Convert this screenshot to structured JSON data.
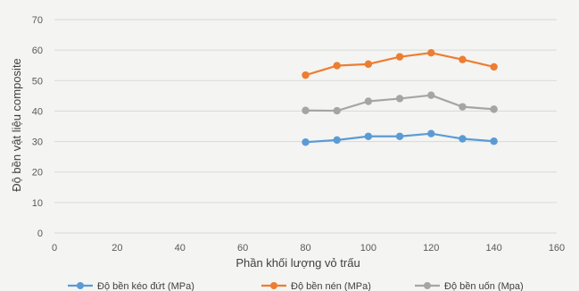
{
  "chart_data": {
    "type": "line",
    "title": "",
    "xlabel": "Phần khối lượng vỏ trấu",
    "ylabel": "Độ bền vật liệu composite",
    "xlim": [
      0,
      160
    ],
    "ylim": [
      0,
      70
    ],
    "x_ticks": [
      0,
      20,
      40,
      60,
      80,
      100,
      120,
      140,
      160
    ],
    "y_ticks": [
      0,
      10,
      20,
      30,
      40,
      50,
      60,
      70
    ],
    "grid": "horizontal",
    "legend_position": "bottom",
    "x": [
      80,
      90,
      100,
      110,
      120,
      130,
      140
    ],
    "series": [
      {
        "name": "Độ bền kéo đứt (MPa)",
        "color": "#5b9bd5",
        "values": [
          29.8,
          30.5,
          31.7,
          31.7,
          32.6,
          30.9,
          30.1
        ]
      },
      {
        "name": "Độ bền nén (MPa)",
        "color": "#ed7d31",
        "values": [
          51.8,
          54.9,
          55.4,
          57.8,
          59.1,
          56.9,
          54.5
        ]
      },
      {
        "name": "Độ bền uốn (Mpa)",
        "color": "#a5a5a5",
        "values": [
          40.2,
          40.1,
          43.2,
          44.1,
          45.2,
          41.4,
          40.6
        ]
      }
    ]
  }
}
